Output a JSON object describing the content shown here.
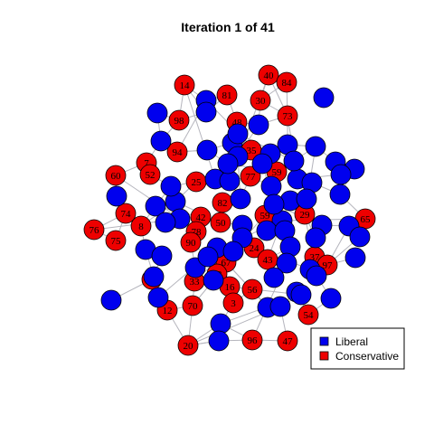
{
  "title": "Iteration 1 of 41",
  "colors": {
    "liberal": "#0000ee",
    "conservative": "#ee0000",
    "edge": "#b5b5bd"
  },
  "legend": [
    {
      "label": "Liberal",
      "group": "liberal"
    },
    {
      "label": "Conservative",
      "group": "conservative"
    }
  ],
  "conservative_labels": [
    "14",
    "81",
    "40",
    "84",
    "30",
    "48",
    "98",
    "73",
    "94",
    "7",
    "52",
    "60",
    "35",
    "77",
    "59",
    "25",
    "82",
    "74",
    "8",
    "76",
    "75",
    "42",
    "78",
    "90",
    "50",
    "59",
    "29",
    "65",
    "24",
    "67",
    "43",
    "62",
    "16",
    "33",
    "56",
    "3",
    "70",
    "61",
    "12",
    "54",
    "20",
    "96",
    "47",
    "37",
    "97"
  ],
  "liberal_count": 67
}
